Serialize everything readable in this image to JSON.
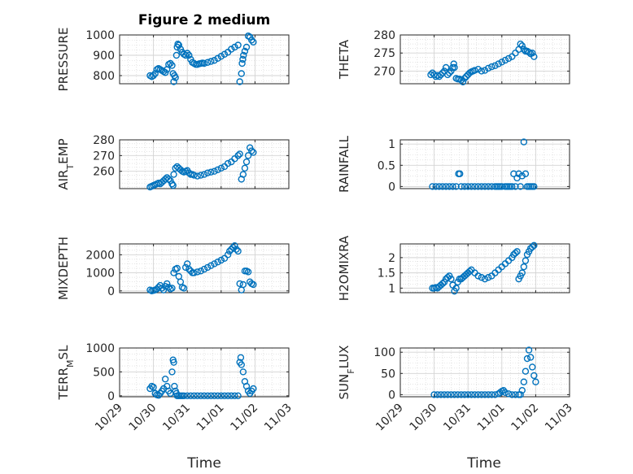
{
  "figure": {
    "title": "Figure 2 medium",
    "xlabel": "Time"
  },
  "chart_data": [
    {
      "type": "scatter",
      "ylabel": "PRESSURE",
      "ylim": [
        760,
        1000
      ],
      "yticks": [
        800,
        900,
        1000
      ],
      "x": [
        0.9,
        0.95,
        1.0,
        1.05,
        1.1,
        1.15,
        1.2,
        1.25,
        1.3,
        1.35,
        1.4,
        1.45,
        1.5,
        1.55,
        1.58,
        1.6,
        1.62,
        1.65,
        1.68,
        1.7,
        1.72,
        1.75,
        1.8,
        1.85,
        1.9,
        1.95,
        2.0,
        2.05,
        2.1,
        2.15,
        2.2,
        2.25,
        2.3,
        2.35,
        2.4,
        2.45,
        2.5,
        2.6,
        2.7,
        2.8,
        2.9,
        3.0,
        3.1,
        3.2,
        3.3,
        3.4,
        3.5,
        3.55,
        3.6,
        3.62,
        3.64,
        3.66,
        3.7,
        3.75,
        3.8,
        3.85,
        3.9,
        3.95
      ],
      "values": [
        800,
        795,
        800,
        810,
        830,
        835,
        830,
        825,
        820,
        815,
        830,
        855,
        860,
        850,
        810,
        770,
        800,
        790,
        900,
        940,
        955,
        950,
        930,
        915,
        905,
        900,
        910,
        900,
        880,
        865,
        860,
        855,
        855,
        858,
        860,
        862,
        860,
        865,
        870,
        875,
        885,
        895,
        905,
        915,
        930,
        940,
        950,
        770,
        810,
        860,
        880,
        900,
        920,
        940,
        995,
        990,
        975,
        965
      ]
    },
    {
      "type": "scatter",
      "ylabel": "THETA",
      "ylim": [
        266.5,
        280
      ],
      "yticks": [
        270,
        275,
        280
      ],
      "x": [
        0.9,
        0.95,
        1.0,
        1.05,
        1.1,
        1.15,
        1.2,
        1.25,
        1.3,
        1.35,
        1.4,
        1.45,
        1.5,
        1.55,
        1.58,
        1.6,
        1.65,
        1.7,
        1.75,
        1.8,
        1.85,
        1.9,
        1.95,
        2.0,
        2.05,
        2.1,
        2.15,
        2.2,
        2.3,
        2.4,
        2.5,
        2.6,
        2.7,
        2.8,
        2.9,
        3.0,
        3.1,
        3.2,
        3.3,
        3.4,
        3.5,
        3.55,
        3.6,
        3.65,
        3.7,
        3.75,
        3.8,
        3.85,
        3.9,
        3.95
      ],
      "values": [
        269,
        269.5,
        269,
        268.5,
        268.8,
        268.5,
        269,
        269.5,
        270,
        271,
        269,
        269.5,
        270,
        271,
        272,
        271,
        268,
        267.8,
        267.8,
        267.5,
        267,
        268,
        268.5,
        269,
        269.5,
        269.8,
        270,
        270.2,
        270.5,
        270,
        270.2,
        270.8,
        271.2,
        271.5,
        272,
        272.5,
        273,
        273.5,
        274,
        275,
        276,
        277.5,
        277,
        276,
        275.5,
        275.5,
        275.2,
        274.8,
        275,
        274
      ]
    },
    {
      "type": "scatter",
      "ylabel": "AIR_TEMP",
      "ylim": [
        249,
        280
      ],
      "yticks": [
        260,
        270,
        280
      ],
      "x": [
        0.9,
        0.95,
        1.0,
        1.05,
        1.1,
        1.15,
        1.2,
        1.25,
        1.3,
        1.35,
        1.4,
        1.45,
        1.5,
        1.55,
        1.58,
        1.6,
        1.65,
        1.7,
        1.75,
        1.8,
        1.85,
        1.9,
        1.95,
        2.0,
        2.05,
        2.1,
        2.15,
        2.2,
        2.3,
        2.4,
        2.5,
        2.6,
        2.7,
        2.8,
        2.9,
        3.0,
        3.1,
        3.2,
        3.3,
        3.4,
        3.5,
        3.55,
        3.6,
        3.65,
        3.7,
        3.75,
        3.8,
        3.85,
        3.9,
        3.95
      ],
      "values": [
        250,
        250.5,
        251,
        251.5,
        252,
        252.5,
        252,
        253,
        254,
        255,
        256,
        255,
        254,
        252,
        251,
        258,
        262,
        263,
        262,
        261,
        260,
        259.5,
        260,
        260.5,
        259,
        258,
        258,
        257.5,
        257,
        257.5,
        258,
        259,
        259.5,
        260,
        261,
        262,
        263,
        265,
        266,
        268,
        270,
        271,
        255,
        258,
        262,
        266,
        270,
        275,
        273,
        272
      ]
    },
    {
      "type": "scatter",
      "ylabel": "RAINFALL",
      "ylim": [
        -0.05,
        1.1
      ],
      "yticks": [
        0,
        0.5,
        1
      ],
      "x": [
        0.95,
        1.05,
        1.15,
        1.25,
        1.35,
        1.45,
        1.55,
        1.65,
        1.72,
        1.76,
        1.8,
        1.9,
        2.0,
        2.1,
        2.2,
        2.3,
        2.4,
        2.5,
        2.6,
        2.7,
        2.8,
        2.85,
        2.9,
        2.95,
        3.0,
        3.1,
        3.15,
        3.2,
        3.25,
        3.3,
        3.35,
        3.4,
        3.45,
        3.5,
        3.55,
        3.6,
        3.65,
        3.7,
        3.75,
        3.8,
        3.85,
        3.9,
        3.95
      ],
      "values": [
        0,
        0,
        0,
        0,
        0,
        0,
        0,
        0,
        0.3,
        0.3,
        0,
        0,
        0,
        0,
        0,
        0,
        0,
        0,
        0,
        0,
        0,
        0,
        0,
        0,
        0,
        0,
        0,
        0,
        0,
        0,
        0.3,
        0,
        0.2,
        0.3,
        0,
        0.25,
        1.05,
        0.3,
        0,
        0,
        0,
        0,
        0
      ]
    },
    {
      "type": "scatter",
      "ylabel": "MIXDEPTH",
      "ylim": [
        -100,
        2600
      ],
      "yticks": [
        0,
        1000,
        2000
      ],
      "x": [
        0.9,
        0.95,
        1.0,
        1.05,
        1.1,
        1.15,
        1.2,
        1.25,
        1.3,
        1.35,
        1.4,
        1.45,
        1.5,
        1.55,
        1.6,
        1.65,
        1.7,
        1.75,
        1.8,
        1.85,
        1.9,
        1.95,
        2.0,
        2.05,
        2.1,
        2.15,
        2.2,
        2.3,
        2.4,
        2.5,
        2.6,
        2.7,
        2.8,
        2.9,
        3.0,
        3.1,
        3.2,
        3.25,
        3.3,
        3.35,
        3.4,
        3.45,
        3.5,
        3.55,
        3.6,
        3.65,
        3.7,
        3.75,
        3.8,
        3.85,
        3.9,
        3.95
      ],
      "values": [
        50,
        0,
        20,
        50,
        100,
        200,
        300,
        150,
        50,
        250,
        400,
        200,
        100,
        150,
        1000,
        1200,
        1250,
        800,
        500,
        200,
        150,
        1300,
        1500,
        1200,
        1100,
        1000,
        1000,
        1050,
        1100,
        1200,
        1300,
        1400,
        1500,
        1600,
        1700,
        1800,
        2000,
        2200,
        2300,
        2400,
        2500,
        2300,
        2200,
        400,
        50,
        350,
        1100,
        1100,
        1050,
        500,
        400,
        350
      ]
    },
    {
      "type": "scatter",
      "ylabel": "H2OMIXRA",
      "ylim": [
        0.85,
        2.45
      ],
      "yticks": [
        1,
        1.5,
        2
      ],
      "x": [
        0.95,
        1.0,
        1.05,
        1.1,
        1.15,
        1.2,
        1.25,
        1.3,
        1.35,
        1.4,
        1.45,
        1.5,
        1.55,
        1.6,
        1.65,
        1.7,
        1.75,
        1.8,
        1.85,
        1.9,
        1.95,
        2.0,
        2.05,
        2.1,
        2.2,
        2.3,
        2.4,
        2.5,
        2.6,
        2.7,
        2.8,
        2.9,
        3.0,
        3.1,
        3.2,
        3.3,
        3.35,
        3.4,
        3.45,
        3.5,
        3.55,
        3.6,
        3.65,
        3.7,
        3.75,
        3.8,
        3.85,
        3.9,
        3.95
      ],
      "values": [
        1.0,
        1.0,
        1.02,
        1.0,
        1.05,
        1.1,
        1.15,
        1.2,
        1.3,
        1.35,
        1.4,
        1.3,
        1.1,
        0.9,
        1.0,
        1.2,
        1.3,
        1.3,
        1.35,
        1.4,
        1.45,
        1.5,
        1.55,
        1.6,
        1.5,
        1.4,
        1.35,
        1.3,
        1.35,
        1.4,
        1.5,
        1.6,
        1.7,
        1.8,
        1.9,
        2.0,
        2.1,
        2.15,
        2.2,
        1.3,
        1.4,
        1.5,
        1.7,
        1.9,
        2.1,
        2.2,
        2.3,
        2.35,
        2.4
      ]
    },
    {
      "type": "scatter",
      "ylabel": "TERR_MSL",
      "ylim": [
        -20,
        1000
      ],
      "yticks": [
        0,
        500,
        1000
      ],
      "x": [
        0.9,
        0.95,
        1.0,
        1.05,
        1.1,
        1.15,
        1.2,
        1.25,
        1.3,
        1.35,
        1.4,
        1.45,
        1.5,
        1.55,
        1.58,
        1.6,
        1.62,
        1.65,
        1.68,
        1.7,
        1.75,
        1.8,
        1.85,
        1.9,
        2.0,
        2.1,
        2.2,
        2.3,
        2.4,
        2.5,
        2.6,
        2.7,
        2.8,
        2.9,
        3.0,
        3.1,
        3.2,
        3.3,
        3.4,
        3.5,
        3.55,
        3.58,
        3.6,
        3.65,
        3.7,
        3.75,
        3.8,
        3.85,
        3.9,
        3.95
      ],
      "values": [
        150,
        200,
        180,
        50,
        20,
        10,
        50,
        100,
        150,
        350,
        200,
        100,
        50,
        500,
        750,
        700,
        200,
        100,
        50,
        0,
        0,
        0,
        0,
        0,
        0,
        0,
        0,
        0,
        0,
        0,
        0,
        0,
        0,
        0,
        0,
        0,
        0,
        0,
        0,
        0,
        700,
        800,
        650,
        500,
        300,
        200,
        100,
        50,
        100,
        150
      ]
    },
    {
      "type": "scatter",
      "ylabel": "SUN_FLUX",
      "ylim": [
        -5,
        110
      ],
      "yticks": [
        0,
        50,
        100
      ],
      "x": [
        1.0,
        1.1,
        1.2,
        1.3,
        1.4,
        1.5,
        1.6,
        1.7,
        1.8,
        1.9,
        2.0,
        2.1,
        2.2,
        2.3,
        2.4,
        2.5,
        2.6,
        2.7,
        2.8,
        2.9,
        2.95,
        3.0,
        3.05,
        3.1,
        3.2,
        3.3,
        3.4,
        3.5,
        3.55,
        3.6,
        3.65,
        3.7,
        3.75,
        3.8,
        3.85,
        3.9,
        3.95,
        4.0
      ],
      "values": [
        0,
        0,
        0,
        0,
        0,
        0,
        0,
        0,
        0,
        0,
        0,
        0,
        0,
        0,
        0,
        0,
        0,
        0,
        0,
        2,
        5,
        8,
        10,
        5,
        2,
        0,
        0,
        0,
        0,
        10,
        30,
        55,
        85,
        105,
        88,
        65,
        45,
        30
      ]
    }
  ],
  "x_axis": {
    "ticks": [
      0,
      1,
      2,
      3,
      4,
      5
    ],
    "tick_labels": [
      "10/29",
      "10/30",
      "10/31",
      "11/01",
      "11/02",
      "11/03"
    ],
    "xlim": [
      0,
      5
    ]
  },
  "colors": {
    "marker": "#0072bd",
    "axes": "#262626",
    "grid": "#d3d3d3"
  }
}
